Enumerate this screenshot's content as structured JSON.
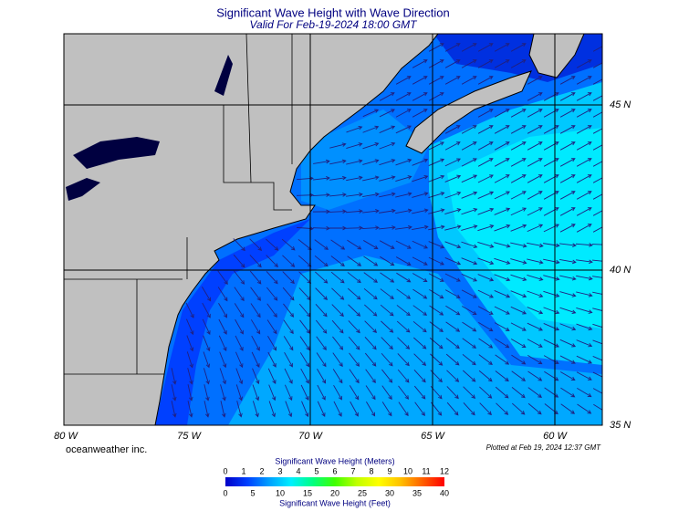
{
  "map": {
    "title": "Significant Wave Height with Wave Direction",
    "subtitle": "Valid For Feb-19-2024 18:00 GMT",
    "lon_labels": [
      "80 W",
      "75 W",
      "70 W",
      "65 W",
      "60 W"
    ],
    "lat_labels": [
      "45 N",
      "40 N",
      "35 N"
    ],
    "credit": "oceanweather inc.",
    "plotted": "Plotted at Feb 19, 2024 12:37 GMT"
  },
  "legend": {
    "title_meters": "Significant Wave Height (Meters)",
    "meters_ticks": [
      "0",
      "1",
      "2",
      "3",
      "4",
      "5",
      "6",
      "7",
      "8",
      "9",
      "10",
      "11",
      "12"
    ],
    "feet_ticks": [
      "0",
      "5",
      "10",
      "15",
      "20",
      "25",
      "30",
      "35",
      "40"
    ],
    "title_feet": "Significant Wave Height (Feet)"
  }
}
